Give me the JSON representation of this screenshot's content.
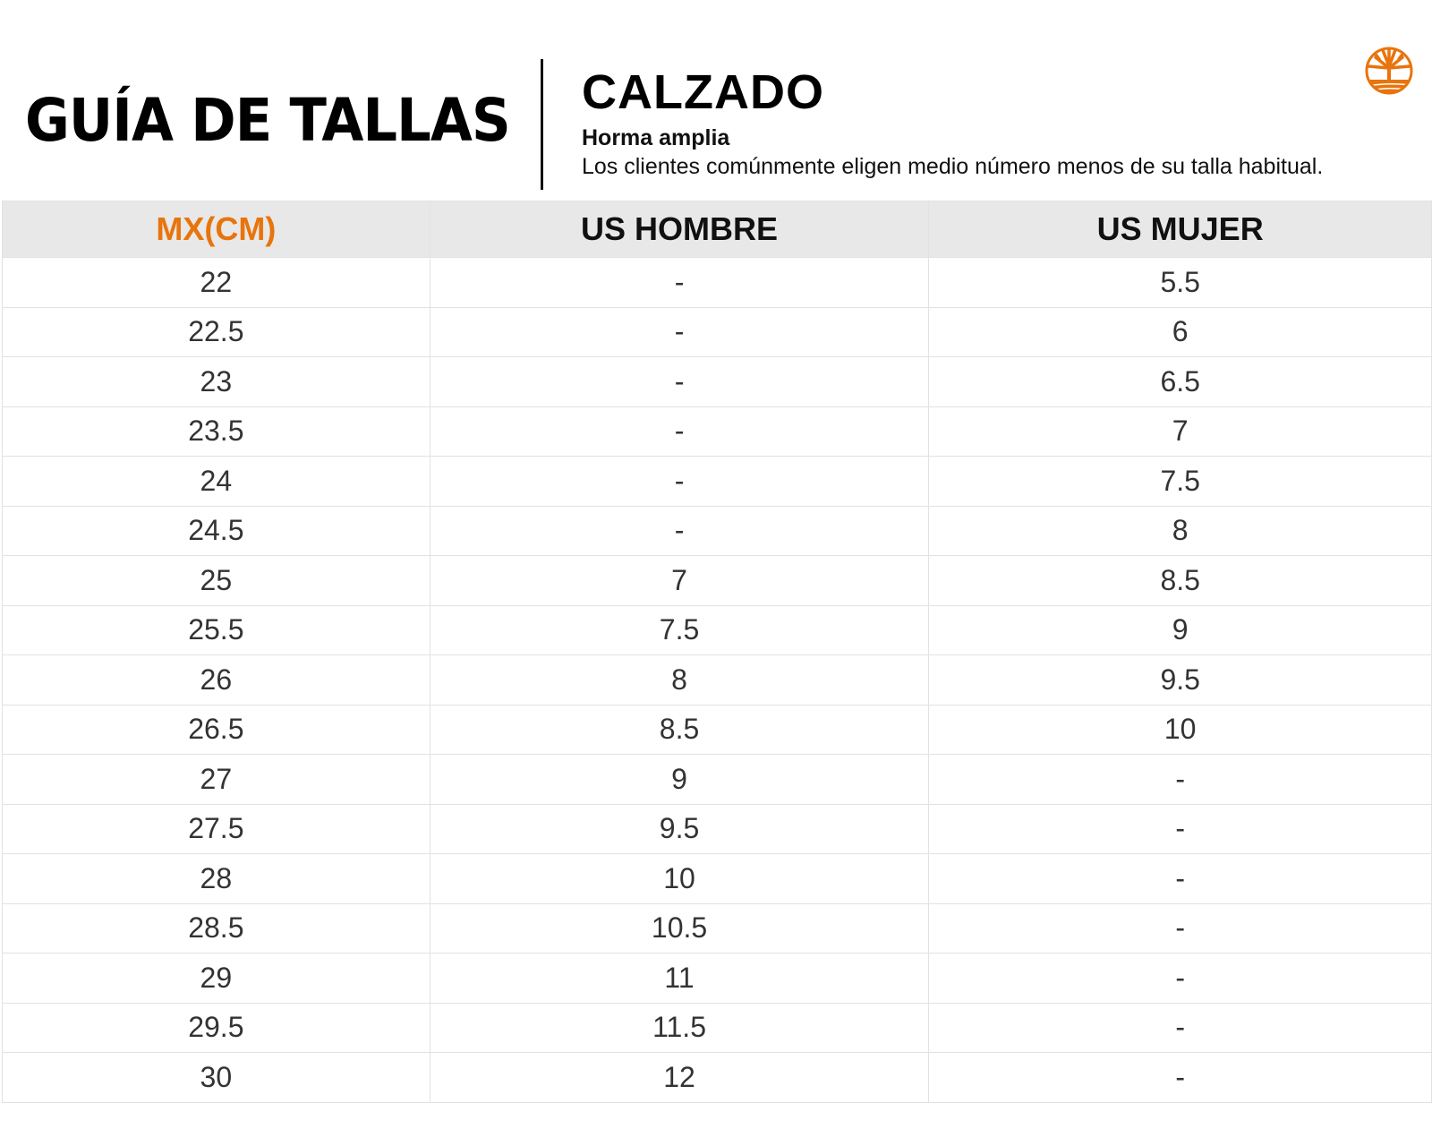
{
  "header": {
    "title": "GUÍA DE TALLAS",
    "section": "CALZADO",
    "fit": "Horma amplia",
    "description": "Los clientes comúnmente eligen medio número menos de su talla habitual.",
    "logo": "tree-logo-icon",
    "brand_color": "#E8740C"
  },
  "table": {
    "columns": [
      "MX(CM)",
      "US HOMBRE",
      "US MUJER"
    ],
    "rows": [
      [
        "22",
        "-",
        "5.5"
      ],
      [
        "22.5",
        "-",
        "6"
      ],
      [
        "23",
        "-",
        "6.5"
      ],
      [
        "23.5",
        "-",
        "7"
      ],
      [
        "24",
        "-",
        "7.5"
      ],
      [
        "24.5",
        "-",
        "8"
      ],
      [
        "25",
        "7",
        "8.5"
      ],
      [
        "25.5",
        "7.5",
        "9"
      ],
      [
        "26",
        "8",
        "9.5"
      ],
      [
        "26.5",
        "8.5",
        "10"
      ],
      [
        "27",
        "9",
        "-"
      ],
      [
        "27.5",
        "9.5",
        "-"
      ],
      [
        "28",
        "10",
        "-"
      ],
      [
        "28.5",
        "10.5",
        "-"
      ],
      [
        "29",
        "11",
        "-"
      ],
      [
        "29.5",
        "11.5",
        "-"
      ],
      [
        "30",
        "12",
        "-"
      ]
    ]
  }
}
